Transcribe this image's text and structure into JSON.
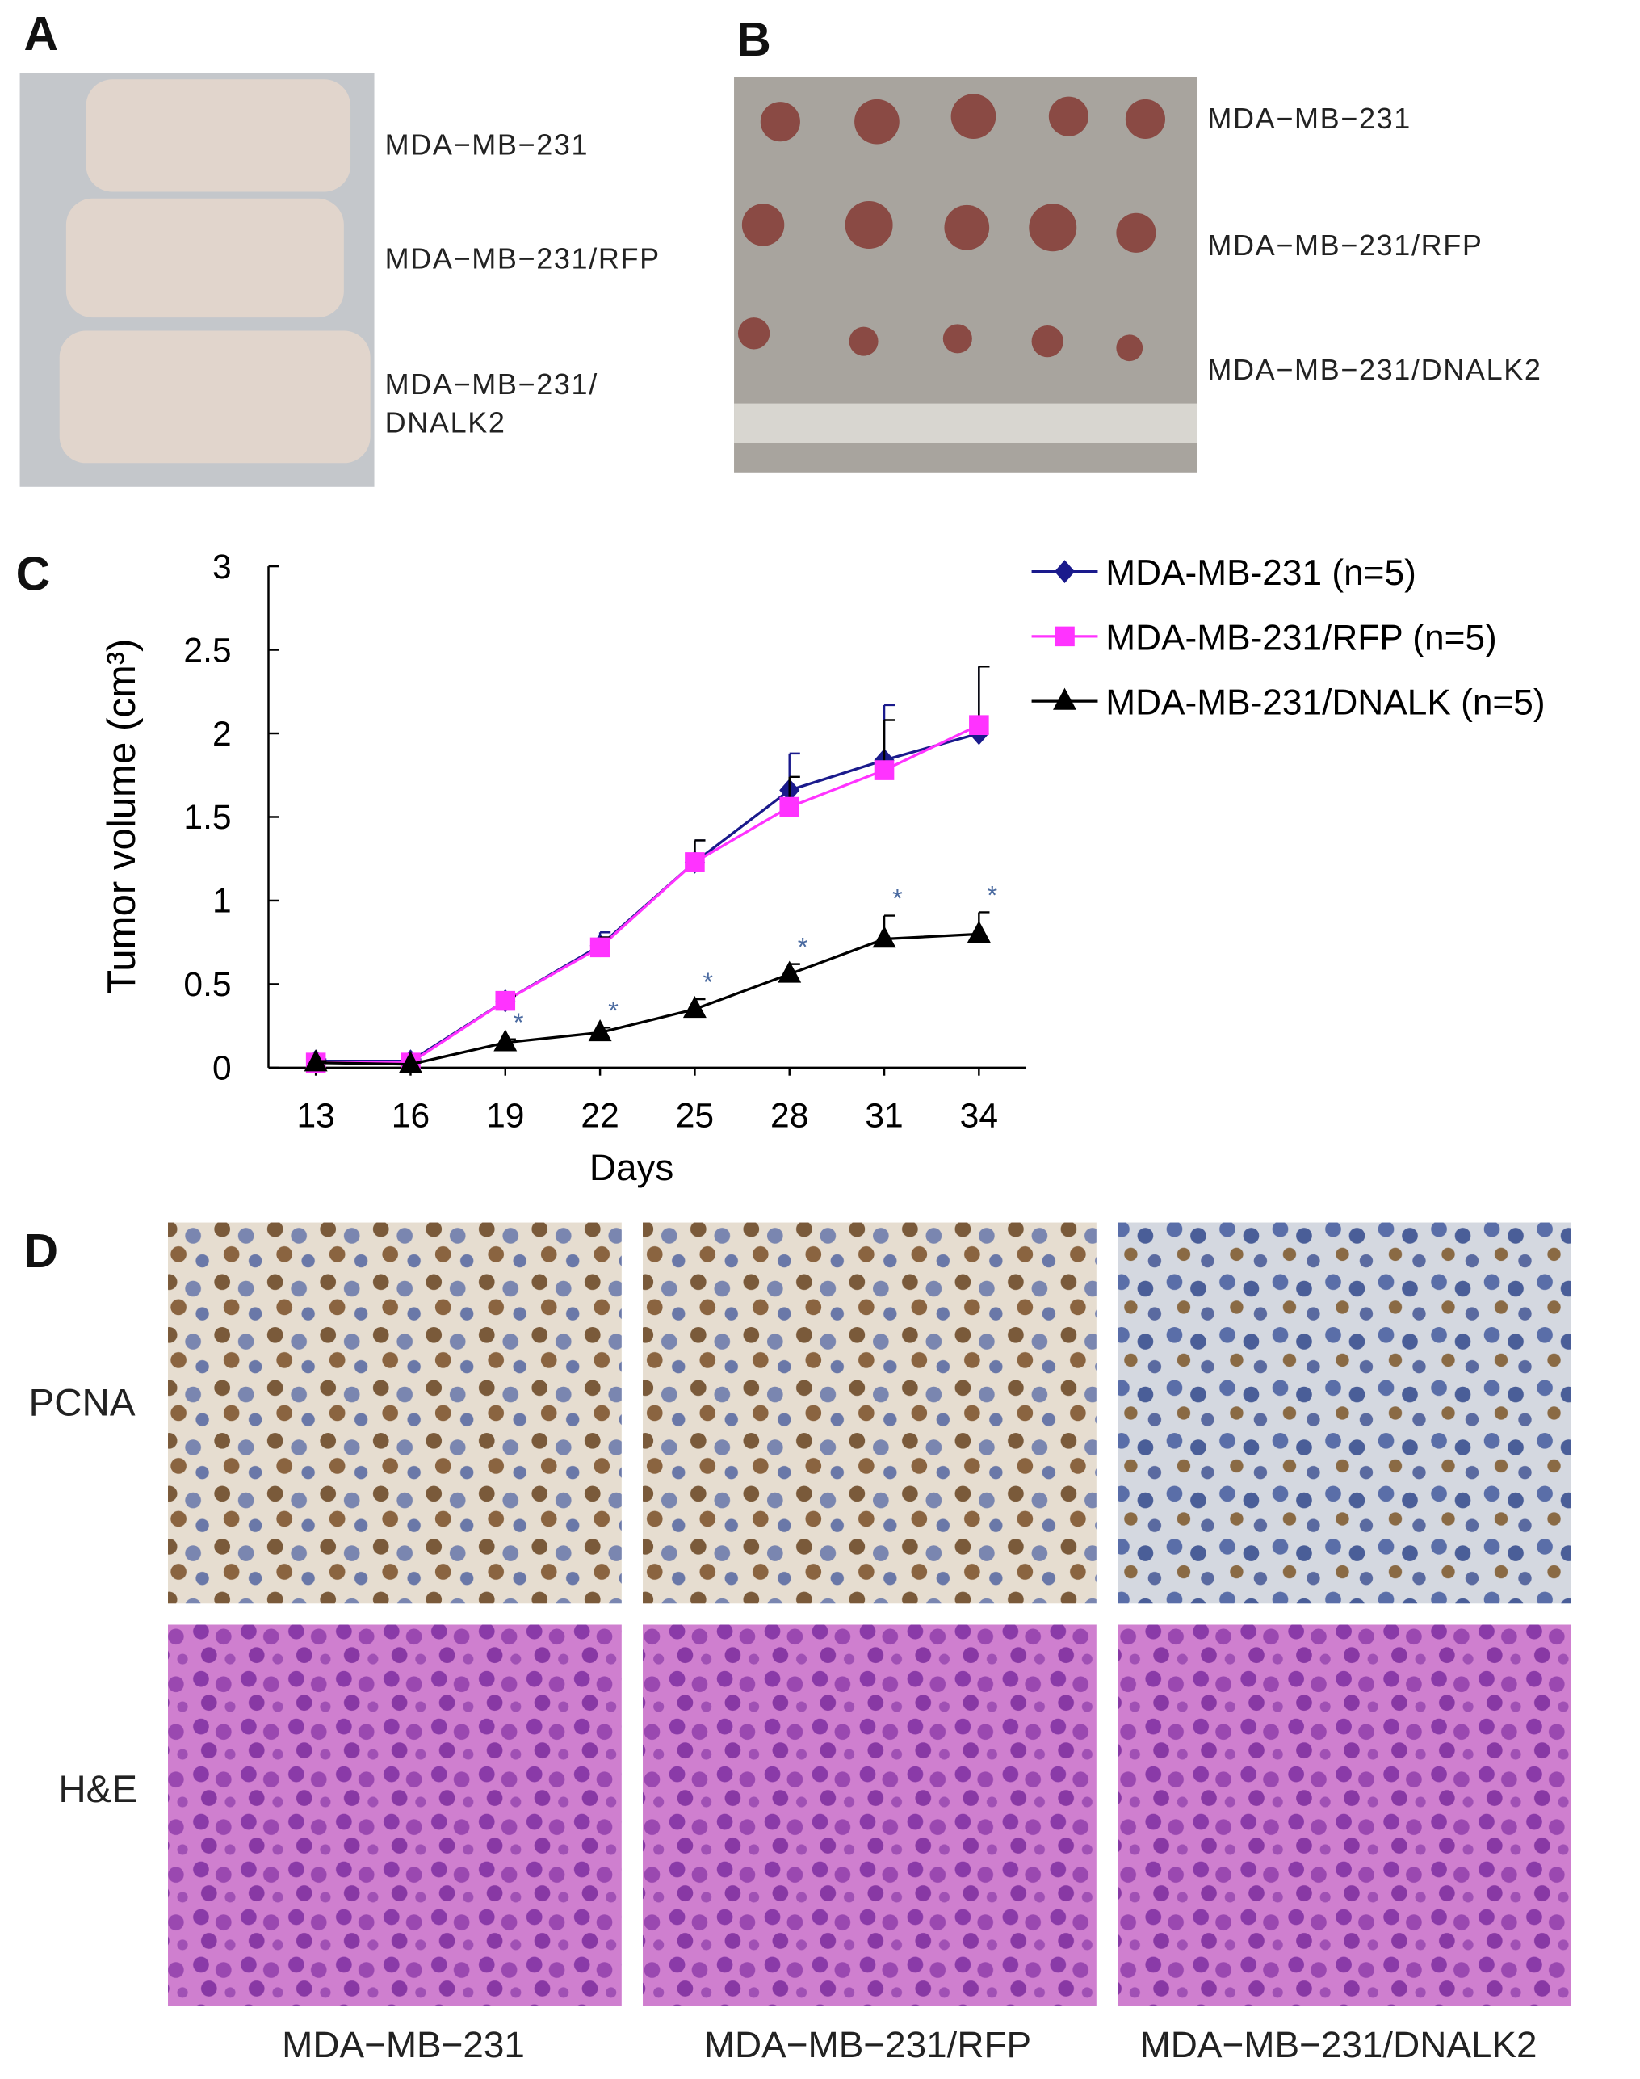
{
  "panels": {
    "A": {
      "letter": "A",
      "labels": [
        "MDA−MB−231",
        "MDA−MB−231/RFP",
        "MDA−MB−231/",
        "DNALK2"
      ]
    },
    "B": {
      "letter": "B",
      "labels": [
        "MDA−MB−231",
        "MDA−MB−231/RFP",
        "MDA−MB−231/DNALK2"
      ]
    },
    "C": {
      "letter": "C"
    },
    "D": {
      "letter": "D",
      "rows": [
        "PCNA",
        "H&E"
      ],
      "columns": [
        "MDA−MB−231",
        "MDA−MB−231/RFP",
        "MDA−MB−231/DNALK2"
      ]
    }
  },
  "chart_data": {
    "type": "line",
    "xlabel": "Days",
    "ylabel": "Tumor volume (cm³)",
    "x": [
      13,
      16,
      19,
      22,
      25,
      28,
      31,
      34
    ],
    "xlim": [
      11.5,
      35.5
    ],
    "xticks": [
      13,
      16,
      19,
      22,
      25,
      28,
      31,
      34
    ],
    "ylim": [
      0,
      3
    ],
    "yticks": [
      0,
      0.5,
      1,
      1.5,
      2,
      2.5,
      3
    ],
    "series": [
      {
        "name": "MDA-MB-231 (n=5)",
        "color": "#1a1a8c",
        "marker": "diamond",
        "values": [
          0.04,
          0.04,
          0.4,
          0.73,
          1.23,
          1.66,
          1.84,
          2.0
        ],
        "errors": [
          0.01,
          0.01,
          0.03,
          0.08,
          0.13,
          0.22,
          0.33,
          0.4
        ]
      },
      {
        "name": "MDA-MB-231/RFP (n=5)",
        "color": "#ff33ff",
        "marker": "square",
        "values": [
          0.03,
          0.03,
          0.4,
          0.72,
          1.23,
          1.56,
          1.78,
          2.05
        ],
        "errors": [
          0.01,
          0.01,
          0.03,
          0.06,
          0.13,
          0.18,
          0.3,
          0.35
        ]
      },
      {
        "name": "MDA-MB-231/DNALK (n=5)",
        "color": "#000000",
        "marker": "triangle",
        "values": [
          0.03,
          0.02,
          0.15,
          0.21,
          0.35,
          0.56,
          0.77,
          0.8
        ],
        "errors": [
          0.01,
          0.01,
          0.02,
          0.03,
          0.06,
          0.06,
          0.14,
          0.13
        ]
      }
    ],
    "annotations": [
      null,
      null,
      "*",
      "*",
      "*",
      "*",
      "*",
      "*"
    ],
    "annotation_color": "#4a6aa0"
  }
}
